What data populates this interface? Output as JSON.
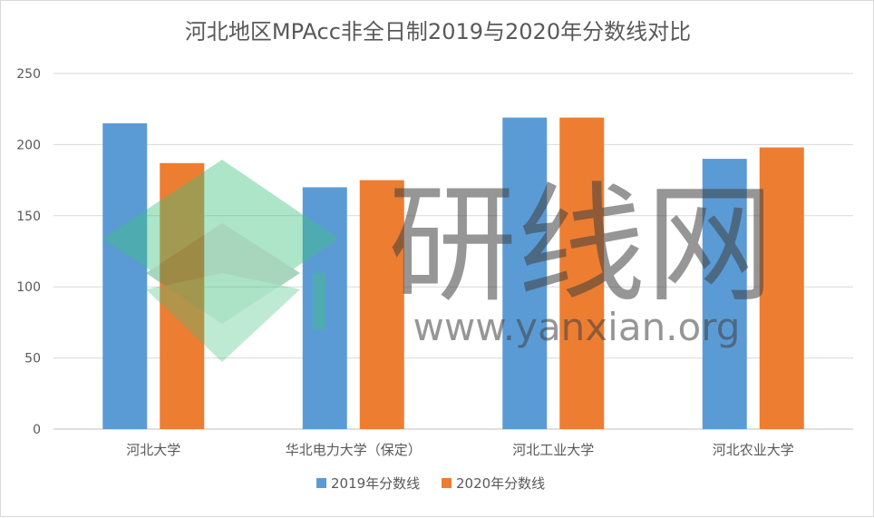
{
  "chart_data": {
    "type": "bar",
    "title": "河北地区MPAcc非全日制2019与2020年分数线对比",
    "categories": [
      "河北大学",
      "华北电力大学（保定）",
      "河北工业大学",
      "河北农业大学"
    ],
    "series": [
      {
        "name": "2019年分数线",
        "values": [
          215,
          170,
          219,
          190
        ],
        "color": "#5b9bd5"
      },
      {
        "name": "2020年分数线",
        "values": [
          187,
          175,
          219,
          198
        ],
        "color": "#ed7d31"
      }
    ],
    "ylim": [
      0,
      250
    ],
    "yticks": [
      0,
      50,
      100,
      150,
      200,
      250
    ],
    "grid": true,
    "legend": "bottom",
    "xlabel": "",
    "ylabel": ""
  },
  "watermark": {
    "brand": "研线网",
    "url": "www.yanxian.org",
    "logo_color": "#3ec27d"
  }
}
